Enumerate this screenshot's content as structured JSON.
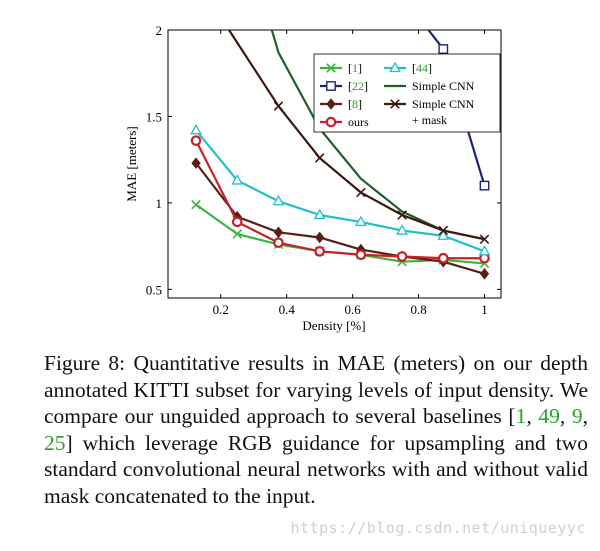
{
  "chart_data": {
    "type": "line",
    "xlabel": "Density [%]",
    "ylabel": "MAE [meters]",
    "xlim": [
      0.04,
      1.05
    ],
    "ylim": [
      0.45,
      2.0
    ],
    "xticks": [
      0.2,
      0.4,
      0.6,
      0.8,
      1
    ],
    "xtick_labels": [
      "0.2",
      "0.4",
      "0.6",
      "0.8",
      "1"
    ],
    "yticks": [
      0.5,
      1,
      1.5,
      2
    ],
    "ytick_labels": [
      "0.5",
      "1",
      "1.5",
      "2"
    ],
    "grid": false,
    "legend_position": "top-right",
    "series": [
      {
        "name": "[1]",
        "legend_cite": "1",
        "color": "#3cb53c",
        "marker": "x",
        "x": [
          0.125,
          0.25,
          0.375,
          0.5,
          0.625,
          0.75,
          0.875,
          1.0
        ],
        "y": [
          0.99,
          0.82,
          0.76,
          0.72,
          0.7,
          0.66,
          0.67,
          0.65
        ]
      },
      {
        "name": "[22]",
        "legend_cite": "22",
        "color": "#1b237a",
        "marker": "square",
        "x": [
          0.875,
          1.0
        ],
        "y": [
          1.89,
          1.1
        ],
        "extend_above": {
          "x": 0.83,
          "y": 2.0
        }
      },
      {
        "name": "[8]",
        "legend_cite": "8",
        "color": "#5a1f14",
        "marker": "diamond",
        "x": [
          0.125,
          0.25,
          0.375,
          0.5,
          0.625,
          0.75,
          0.875,
          1.0
        ],
        "y": [
          1.23,
          0.92,
          0.83,
          0.8,
          0.73,
          0.69,
          0.66,
          0.59
        ]
      },
      {
        "name": "ours",
        "legend_cite": "",
        "color": "#c8202a",
        "marker": "circle",
        "x": [
          0.125,
          0.25,
          0.375,
          0.5,
          0.625,
          0.75,
          0.875,
          1.0
        ],
        "y": [
          1.36,
          0.89,
          0.77,
          0.72,
          0.7,
          0.69,
          0.68,
          0.68
        ]
      },
      {
        "name": "[44]",
        "legend_cite": "44",
        "color": "#22c0c6",
        "marker": "triangle",
        "x": [
          0.125,
          0.25,
          0.375,
          0.5,
          0.625,
          0.75,
          0.875,
          1.0
        ],
        "y": [
          1.42,
          1.13,
          1.01,
          0.93,
          0.89,
          0.84,
          0.81,
          0.72
        ]
      },
      {
        "name": "Simple CNN",
        "legend_cite": "",
        "color": "#1e5e2c",
        "marker": "none",
        "x": [
          0.375,
          0.5,
          0.625,
          0.75,
          0.875,
          1.0
        ],
        "y": [
          1.87,
          1.43,
          1.14,
          0.95,
          0.84,
          0.79
        ],
        "extend_above": {
          "x": 0.355,
          "y": 2.0
        }
      },
      {
        "name": "Simple CNN + mask",
        "legend_cite": "",
        "color": "#3a1a10",
        "marker": "x",
        "x": [
          0.375,
          0.5,
          0.625,
          0.75,
          0.875,
          1.0
        ],
        "y": [
          1.56,
          1.26,
          1.06,
          0.93,
          0.84,
          0.79
        ],
        "extend_above": {
          "x": 0.225,
          "y": 2.0
        }
      }
    ],
    "legend": {
      "rows": [
        [
          "[1]",
          "[44]"
        ],
        [
          "[22]",
          "Simple CNN"
        ],
        [
          "[8]",
          "Simple CNN + mask"
        ],
        [
          "ours",
          ""
        ]
      ],
      "label_lines": {
        "[1]": [
          "[",
          "1",
          "]"
        ],
        "[44]": [
          "[",
          "44",
          "]"
        ],
        "[22]": [
          "[",
          "22",
          "]"
        ],
        "Simple CNN": [
          "Simple CNN"
        ],
        "[8]": [
          "[",
          "8",
          "]"
        ],
        "Simple CNN + mask": [
          "Simple CNN",
          "+ mask"
        ],
        "ours": [
          "ours"
        ]
      }
    }
  },
  "caption": {
    "label": "Figure 8:",
    "text_a": " Quantitative results in MAE (meters) on our depth annotated KITTI subset for varying levels of input density. We compare our unguided approach to several baselines [",
    "cite_1": "1",
    "sep_1": ", ",
    "cite_2": "49",
    "sep_2": ", ",
    "cite_3": "9",
    "sep_3": ", ",
    "cite_4": "25",
    "text_b": "] which leverage RGB guidance for upsampling and two standard convolutional neural networks with and without valid mask concatenated to the input."
  },
  "watermark": "https://blog.csdn.net/uniqueyyc",
  "colors": {
    "cite_green": "#2ca02c"
  }
}
